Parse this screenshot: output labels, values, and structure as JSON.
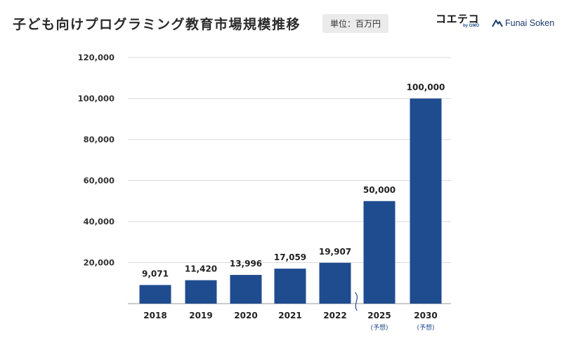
{
  "title": "子ども向けプログラミング教育市場規模推移",
  "unit_label": "単位：百万円",
  "logos": {
    "coeteco": "コエテコ",
    "coeteco_sub": "by GMO",
    "funai": "Funai Soken"
  },
  "colors": {
    "bar": "#1f4b8f",
    "grid": "#d9d9d9",
    "axis": "#9a9a9a"
  },
  "chart_data": {
    "type": "bar",
    "title": "子ども向けプログラミング教育市場規模推移",
    "xlabel": "",
    "ylabel": "",
    "categories": [
      "2018",
      "2019",
      "2020",
      "2021",
      "2022",
      "2025",
      "2030"
    ],
    "category_notes": [
      "",
      "",
      "",
      "",
      "",
      "(予想)",
      "(予想)"
    ],
    "values": [
      9071,
      11420,
      13996,
      17059,
      19907,
      50000,
      100000
    ],
    "value_labels": [
      "9,071",
      "11,420",
      "13,996",
      "17,059",
      "19,907",
      "50,000",
      "100,000"
    ],
    "ylim": [
      0,
      120000
    ],
    "yticks": [
      20000,
      40000,
      60000,
      80000,
      100000,
      120000
    ],
    "ytick_labels": [
      "20,000",
      "40,000",
      "60,000",
      "80,000",
      "100,000",
      "120,000"
    ],
    "grid": true,
    "axis_break_after": "2022"
  }
}
